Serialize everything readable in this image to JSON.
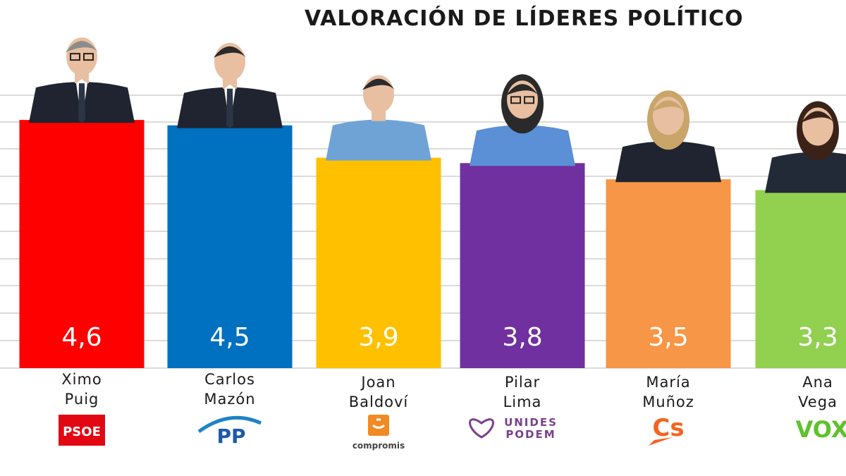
{
  "chart_data": {
    "type": "bar",
    "title": "VALORACIÓN DE LÍDERES POLÍTICO",
    "ylim": [
      0,
      5
    ],
    "grid": true,
    "bars": [
      {
        "first_name": "Ximo",
        "last_name": "Puig",
        "value": 4.6,
        "value_label": "4,6",
        "color": "#ff0000",
        "party": "PSOE",
        "party_logo": "psoe-logo"
      },
      {
        "first_name": "Carlos",
        "last_name": "Mazón",
        "value": 4.5,
        "value_label": "4,5",
        "color": "#0070c0",
        "party": "PP",
        "party_logo": "pp-logo"
      },
      {
        "first_name": "Joan",
        "last_name": "Baldoví",
        "value": 3.9,
        "value_label": "3,9",
        "color": "#ffc000",
        "party": "compromis",
        "party_logo": "compromis-logo"
      },
      {
        "first_name": "Pilar",
        "last_name": "Lima",
        "value": 3.8,
        "value_label": "3,8",
        "color": "#7030a0",
        "party": "UNIDES PODEM",
        "party_logo": "unides-podem-logo"
      },
      {
        "first_name": "María",
        "last_name": "Muñoz",
        "value": 3.5,
        "value_label": "3,5",
        "color": "#f79646",
        "party": "Cs",
        "party_logo": "cs-logo"
      },
      {
        "first_name": "Ana",
        "last_name": "Vega",
        "value": 3.3,
        "value_label": "3,3",
        "color": "#92d050",
        "party": "VOX",
        "party_logo": "vox-logo"
      }
    ]
  }
}
